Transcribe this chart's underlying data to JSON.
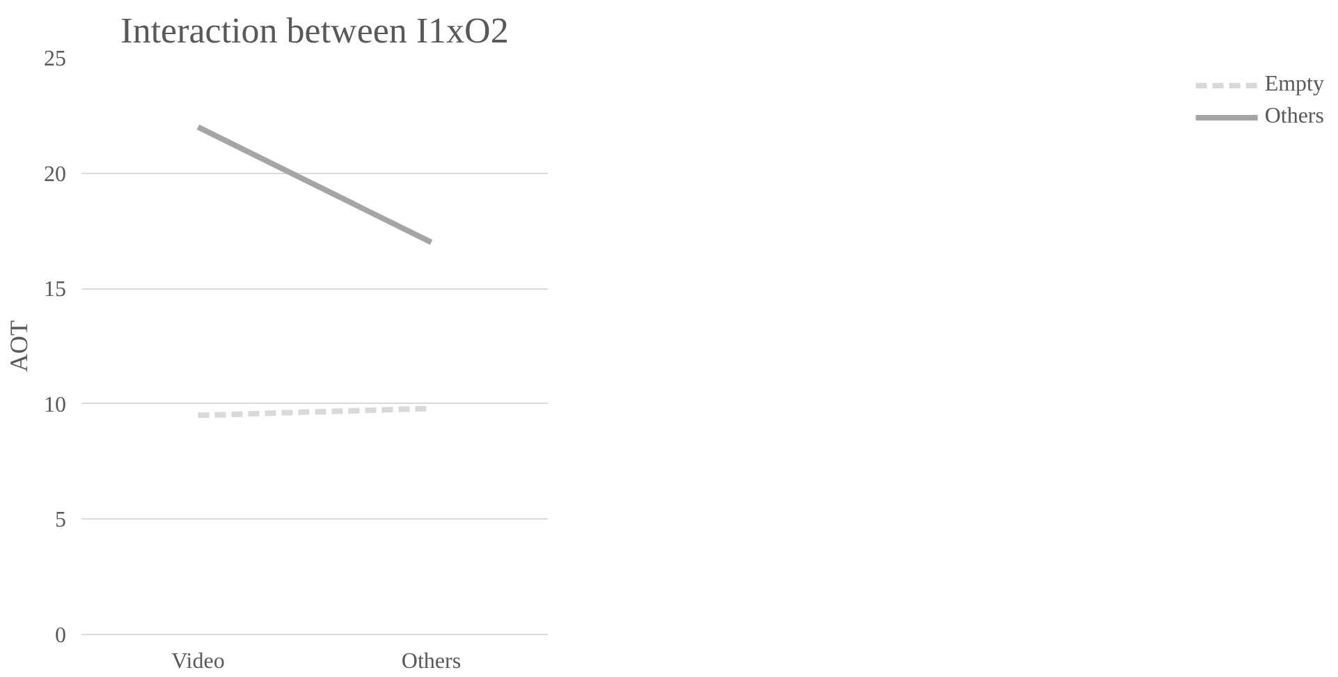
{
  "chart_data": {
    "type": "line",
    "title": "Interaction between I1xO2",
    "ylabel": "AOT",
    "categories": [
      "Video",
      "Others"
    ],
    "series": [
      {
        "name": "Empty",
        "color": "#d9d9d9",
        "values": [
          9.5,
          9.8
        ],
        "line_style": "dashed"
      },
      {
        "name": "Others",
        "color": "#a5a5a5",
        "values": [
          22,
          17
        ],
        "line_style": "solid"
      }
    ],
    "ylim": [
      0,
      25
    ],
    "yticks": [
      0,
      5,
      10,
      15,
      20,
      25
    ],
    "grid": "y",
    "legend": "right",
    "marker": "none"
  }
}
